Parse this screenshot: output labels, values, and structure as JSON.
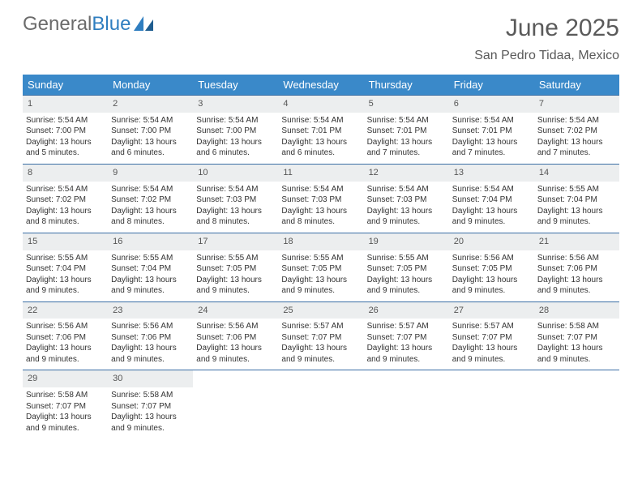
{
  "logo": {
    "text_gray": "General",
    "text_blue": "Blue"
  },
  "header": {
    "month": "June 2025",
    "location": "San Pedro Tidaa, Mexico"
  },
  "colors": {
    "header_bg": "#3a89c9",
    "header_fg": "#ffffff",
    "daynum_bg": "#eceeef",
    "rule": "#3a6ea5",
    "text": "#333333",
    "logo_gray": "#6b6b6b",
    "logo_blue": "#2f7ec0"
  },
  "days_of_week": [
    "Sunday",
    "Monday",
    "Tuesday",
    "Wednesday",
    "Thursday",
    "Friday",
    "Saturday"
  ],
  "weeks": [
    [
      {
        "n": "1",
        "sr": "Sunrise: 5:54 AM",
        "ss": "Sunset: 7:00 PM",
        "dl": "Daylight: 13 hours and 5 minutes."
      },
      {
        "n": "2",
        "sr": "Sunrise: 5:54 AM",
        "ss": "Sunset: 7:00 PM",
        "dl": "Daylight: 13 hours and 6 minutes."
      },
      {
        "n": "3",
        "sr": "Sunrise: 5:54 AM",
        "ss": "Sunset: 7:00 PM",
        "dl": "Daylight: 13 hours and 6 minutes."
      },
      {
        "n": "4",
        "sr": "Sunrise: 5:54 AM",
        "ss": "Sunset: 7:01 PM",
        "dl": "Daylight: 13 hours and 6 minutes."
      },
      {
        "n": "5",
        "sr": "Sunrise: 5:54 AM",
        "ss": "Sunset: 7:01 PM",
        "dl": "Daylight: 13 hours and 7 minutes."
      },
      {
        "n": "6",
        "sr": "Sunrise: 5:54 AM",
        "ss": "Sunset: 7:01 PM",
        "dl": "Daylight: 13 hours and 7 minutes."
      },
      {
        "n": "7",
        "sr": "Sunrise: 5:54 AM",
        "ss": "Sunset: 7:02 PM",
        "dl": "Daylight: 13 hours and 7 minutes."
      }
    ],
    [
      {
        "n": "8",
        "sr": "Sunrise: 5:54 AM",
        "ss": "Sunset: 7:02 PM",
        "dl": "Daylight: 13 hours and 8 minutes."
      },
      {
        "n": "9",
        "sr": "Sunrise: 5:54 AM",
        "ss": "Sunset: 7:02 PM",
        "dl": "Daylight: 13 hours and 8 minutes."
      },
      {
        "n": "10",
        "sr": "Sunrise: 5:54 AM",
        "ss": "Sunset: 7:03 PM",
        "dl": "Daylight: 13 hours and 8 minutes."
      },
      {
        "n": "11",
        "sr": "Sunrise: 5:54 AM",
        "ss": "Sunset: 7:03 PM",
        "dl": "Daylight: 13 hours and 8 minutes."
      },
      {
        "n": "12",
        "sr": "Sunrise: 5:54 AM",
        "ss": "Sunset: 7:03 PM",
        "dl": "Daylight: 13 hours and 9 minutes."
      },
      {
        "n": "13",
        "sr": "Sunrise: 5:54 AM",
        "ss": "Sunset: 7:04 PM",
        "dl": "Daylight: 13 hours and 9 minutes."
      },
      {
        "n": "14",
        "sr": "Sunrise: 5:55 AM",
        "ss": "Sunset: 7:04 PM",
        "dl": "Daylight: 13 hours and 9 minutes."
      }
    ],
    [
      {
        "n": "15",
        "sr": "Sunrise: 5:55 AM",
        "ss": "Sunset: 7:04 PM",
        "dl": "Daylight: 13 hours and 9 minutes."
      },
      {
        "n": "16",
        "sr": "Sunrise: 5:55 AM",
        "ss": "Sunset: 7:04 PM",
        "dl": "Daylight: 13 hours and 9 minutes."
      },
      {
        "n": "17",
        "sr": "Sunrise: 5:55 AM",
        "ss": "Sunset: 7:05 PM",
        "dl": "Daylight: 13 hours and 9 minutes."
      },
      {
        "n": "18",
        "sr": "Sunrise: 5:55 AM",
        "ss": "Sunset: 7:05 PM",
        "dl": "Daylight: 13 hours and 9 minutes."
      },
      {
        "n": "19",
        "sr": "Sunrise: 5:55 AM",
        "ss": "Sunset: 7:05 PM",
        "dl": "Daylight: 13 hours and 9 minutes."
      },
      {
        "n": "20",
        "sr": "Sunrise: 5:56 AM",
        "ss": "Sunset: 7:05 PM",
        "dl": "Daylight: 13 hours and 9 minutes."
      },
      {
        "n": "21",
        "sr": "Sunrise: 5:56 AM",
        "ss": "Sunset: 7:06 PM",
        "dl": "Daylight: 13 hours and 9 minutes."
      }
    ],
    [
      {
        "n": "22",
        "sr": "Sunrise: 5:56 AM",
        "ss": "Sunset: 7:06 PM",
        "dl": "Daylight: 13 hours and 9 minutes."
      },
      {
        "n": "23",
        "sr": "Sunrise: 5:56 AM",
        "ss": "Sunset: 7:06 PM",
        "dl": "Daylight: 13 hours and 9 minutes."
      },
      {
        "n": "24",
        "sr": "Sunrise: 5:56 AM",
        "ss": "Sunset: 7:06 PM",
        "dl": "Daylight: 13 hours and 9 minutes."
      },
      {
        "n": "25",
        "sr": "Sunrise: 5:57 AM",
        "ss": "Sunset: 7:07 PM",
        "dl": "Daylight: 13 hours and 9 minutes."
      },
      {
        "n": "26",
        "sr": "Sunrise: 5:57 AM",
        "ss": "Sunset: 7:07 PM",
        "dl": "Daylight: 13 hours and 9 minutes."
      },
      {
        "n": "27",
        "sr": "Sunrise: 5:57 AM",
        "ss": "Sunset: 7:07 PM",
        "dl": "Daylight: 13 hours and 9 minutes."
      },
      {
        "n": "28",
        "sr": "Sunrise: 5:58 AM",
        "ss": "Sunset: 7:07 PM",
        "dl": "Daylight: 13 hours and 9 minutes."
      }
    ],
    [
      {
        "n": "29",
        "sr": "Sunrise: 5:58 AM",
        "ss": "Sunset: 7:07 PM",
        "dl": "Daylight: 13 hours and 9 minutes."
      },
      {
        "n": "30",
        "sr": "Sunrise: 5:58 AM",
        "ss": "Sunset: 7:07 PM",
        "dl": "Daylight: 13 hours and 9 minutes."
      },
      null,
      null,
      null,
      null,
      null
    ]
  ]
}
